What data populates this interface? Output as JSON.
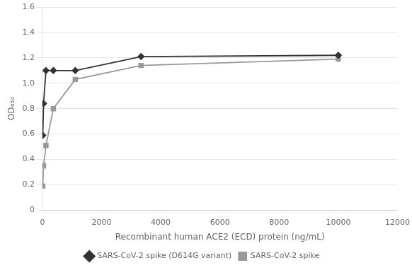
{
  "chart_data": {
    "type": "scatter",
    "x_label": "Recombinant human ACE2 (ECD) protein (ng/mL)",
    "y_label": "OD₄₅₀",
    "series": [
      {
        "name": "SARS-CoV-2 spike (D614G variant)",
        "color": "#333333",
        "marker": "diamond",
        "line_style": "solid",
        "x": [
          13,
          40,
          120,
          370,
          1111,
          3333,
          10000
        ],
        "values": [
          0.59,
          0.84,
          1.1,
          1.1,
          1.1,
          1.21,
          1.22
        ]
      },
      {
        "name": "SARS-CoV-2 spike",
        "color": "#999999",
        "marker": "square",
        "line_style": "solid",
        "x": [
          13,
          40,
          120,
          370,
          1111,
          3333,
          10000
        ],
        "values": [
          0.19,
          0.35,
          0.51,
          0.8,
          1.03,
          1.14,
          1.19
        ]
      }
    ],
    "xlim": [
      0,
      12000
    ],
    "ylim": [
      0,
      1.6
    ],
    "xticks": [
      0,
      2000,
      4000,
      6000,
      8000,
      10000,
      12000
    ],
    "yticks": [
      0,
      0.2,
      0.4,
      0.6,
      0.8,
      {
        "value": 1.0,
        "label": "1.0"
      },
      1.2,
      1.4,
      1.6
    ],
    "grid": "y",
    "legend": "bottom"
  }
}
